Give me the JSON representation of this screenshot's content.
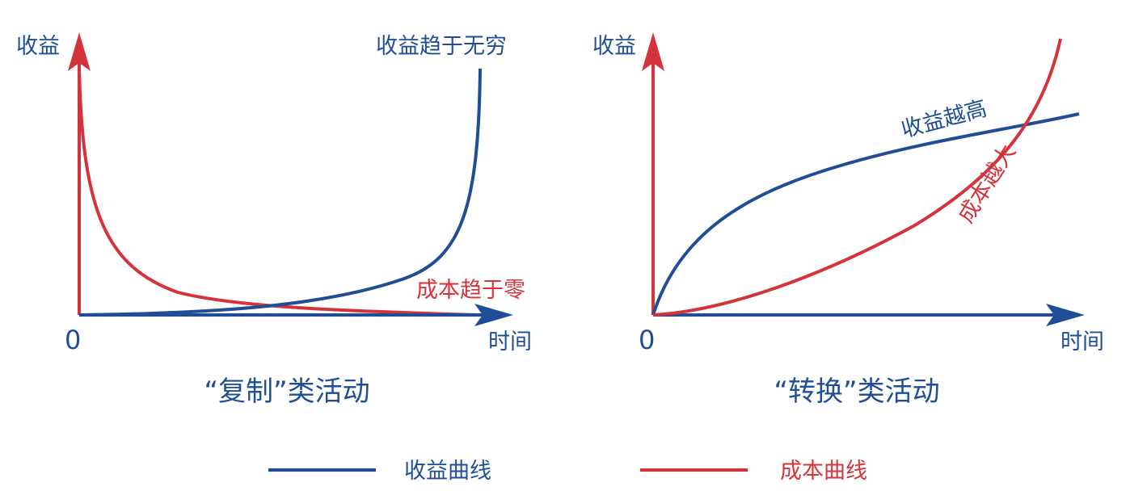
{
  "colors": {
    "revenue": "#1f4e96",
    "cost": "#d5333c"
  },
  "left_panel": {
    "title": "“复制”类活动",
    "y_axis_label": "收益",
    "x_axis_label": "时间",
    "origin_label": "0",
    "revenue_annotation": "收益趋于无穷",
    "cost_annotation": "成本趋于零"
  },
  "right_panel": {
    "title": "“转换”类活动",
    "y_axis_label": "收益",
    "x_axis_label": "时间",
    "origin_label": "0",
    "revenue_annotation": "收益越高",
    "cost_annotation": "成本越大"
  },
  "legend": {
    "revenue_label": "收益曲线",
    "cost_label": "成本曲线"
  }
}
